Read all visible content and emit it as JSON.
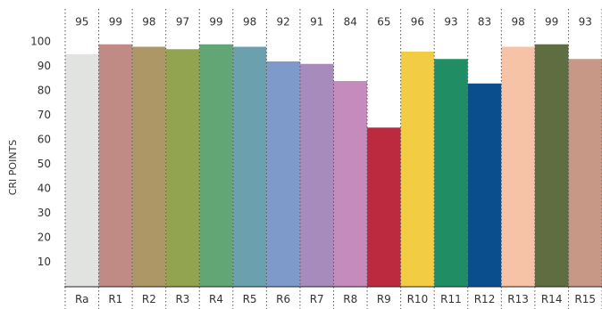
{
  "chart_data": {
    "type": "bar",
    "ylabel": "CRI POINTS",
    "xlabel": "",
    "ylim": [
      0,
      105
    ],
    "yticks": [
      10,
      20,
      30,
      40,
      50,
      60,
      70,
      80,
      90,
      100
    ],
    "grid": "vertical dotted separators between categories",
    "categories": [
      "Ra",
      "R1",
      "R2",
      "R3",
      "R4",
      "R5",
      "R6",
      "R7",
      "R8",
      "R9",
      "R10",
      "R11",
      "R12",
      "R13",
      "R14",
      "R15"
    ],
    "values": [
      95,
      99,
      98,
      97,
      99,
      98,
      92,
      91,
      84,
      65,
      96,
      93,
      83,
      98,
      99,
      93
    ],
    "colors": [
      "#e1e3e1",
      "#c08b84",
      "#ad9767",
      "#92a44f",
      "#63a676",
      "#6ba0ae",
      "#7e9acb",
      "#a88bbd",
      "#c58bbc",
      "#bc2a40",
      "#f2cd44",
      "#218d65",
      "#0b4e8e",
      "#f7c3a6",
      "#5e6e40",
      "#c69885"
    ]
  }
}
